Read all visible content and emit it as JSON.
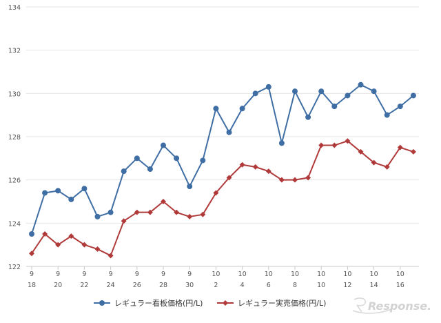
{
  "chart_data": {
    "type": "line",
    "title": "",
    "xlabel": "",
    "ylabel": "",
    "ylim": [
      122,
      134
    ],
    "yticks": [
      122,
      124,
      126,
      128,
      130,
      132,
      134
    ],
    "grid": "horizontal",
    "legend_position": "bottom-center",
    "x_tick_labels": [
      {
        "month": "9",
        "day": "18"
      },
      {
        "month": "9",
        "day": "20"
      },
      {
        "month": "9",
        "day": "22"
      },
      {
        "month": "9",
        "day": "24"
      },
      {
        "month": "9",
        "day": "26"
      },
      {
        "month": "9",
        "day": "28"
      },
      {
        "month": "9",
        "day": "30"
      },
      {
        "month": "10",
        "day": "2"
      },
      {
        "month": "10",
        "day": "4"
      },
      {
        "month": "10",
        "day": "6"
      },
      {
        "month": "10",
        "day": "8"
      },
      {
        "month": "10",
        "day": "10"
      },
      {
        "month": "10",
        "day": "12"
      },
      {
        "month": "10",
        "day": "14"
      },
      {
        "month": "10",
        "day": "16"
      }
    ],
    "series": [
      {
        "name": "レギュラー看板価格(円/L)",
        "color": "#3f6ea5",
        "marker": "circle",
        "values": [
          123.5,
          125.4,
          125.5,
          125.1,
          125.6,
          124.3,
          124.5,
          126.4,
          127.0,
          126.5,
          127.6,
          127.0,
          125.7,
          126.9,
          129.3,
          128.2,
          129.3,
          130.0,
          130.3,
          127.7,
          130.1,
          128.9,
          130.1,
          129.4,
          129.9,
          130.4,
          130.1,
          129.0,
          129.4,
          129.9
        ]
      },
      {
        "name": "レギュラー実売価格(円/L)",
        "color": "#b03a3a",
        "marker": "diamond",
        "values": [
          122.6,
          123.5,
          123.0,
          123.4,
          123.0,
          122.8,
          122.5,
          124.1,
          124.5,
          124.5,
          125.0,
          124.5,
          124.3,
          124.4,
          125.4,
          126.1,
          126.7,
          126.6,
          126.4,
          126.0,
          126.0,
          126.1,
          127.6,
          127.6,
          127.8,
          127.3,
          126.8,
          126.6,
          127.5,
          127.3
        ]
      }
    ]
  },
  "watermark": "Response."
}
